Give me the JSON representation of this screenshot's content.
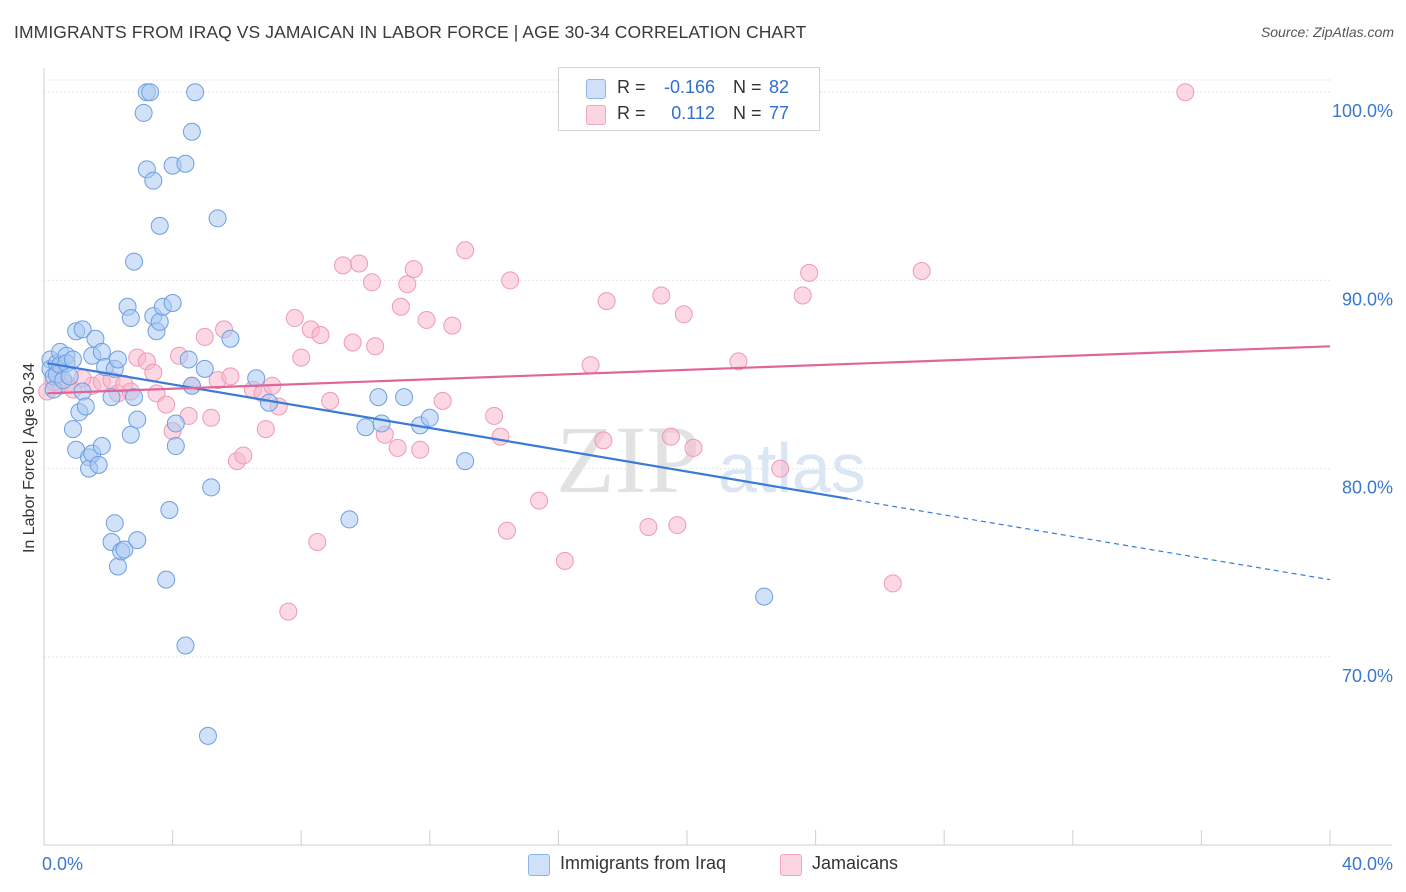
{
  "header": {
    "title": "IMMIGRANTS FROM IRAQ VS JAMAICAN IN LABOR FORCE | AGE 30-34 CORRELATION CHART",
    "source": "Source: ZipAtlas.com"
  },
  "watermark": {
    "zip": "ZIP",
    "atlas": "atlas"
  },
  "legend": {
    "rows": [
      {
        "r_label": "R =",
        "r_value": "-0.166",
        "n_label": "N =",
        "n_value": "82",
        "color": "#a9c8f3"
      },
      {
        "r_label": "R =",
        "r_value": "0.112",
        "n_label": "N =",
        "n_value": "77",
        "color": "#f7b8cc"
      }
    ]
  },
  "bottom_legend": {
    "items": [
      {
        "label": "Immigrants from Iraq",
        "color": "#a9c8f3"
      },
      {
        "label": "Jamaicans",
        "color": "#f7b8cc"
      }
    ]
  },
  "chart_data": {
    "type": "scatter",
    "title": "IMMIGRANTS FROM IRAQ VS JAMAICAN IN LABOR FORCE | AGE 30-34 CORRELATION CHART",
    "xlabel": "",
    "ylabel": "In Labor Force | Age 30-34",
    "xlim": [
      0,
      40
    ],
    "ylim": [
      60,
      101.5
    ],
    "x_tick_labels": [
      "0.0%",
      "40.0%"
    ],
    "y_ticks": [
      70,
      80,
      90,
      100
    ],
    "y_tick_labels": [
      "70.0%",
      "80.0%",
      "90.0%",
      "100.0%"
    ],
    "grid": true,
    "legend_position": "top-center",
    "colors": {
      "iraq": "#3a7bd5",
      "jamaicans": "#e0669a",
      "iraq_fill": "#a9c8f3",
      "jamaicans_fill": "#f7b8cc"
    },
    "series": [
      {
        "name": "Immigrants from Iraq",
        "trend": {
          "x": [
            0.1,
            25.0
          ],
          "y": [
            85.6,
            78.4
          ],
          "dashed_to_x": 40.0,
          "dashed_y": 74.1
        },
        "points": [
          [
            0.2,
            85.8
          ],
          [
            0.2,
            85.3
          ],
          [
            0.3,
            84.9
          ],
          [
            0.3,
            84.2
          ],
          [
            0.4,
            85.6
          ],
          [
            0.4,
            85.0
          ],
          [
            0.5,
            86.2
          ],
          [
            0.5,
            85.5
          ],
          [
            0.6,
            84.7
          ],
          [
            0.7,
            86.0
          ],
          [
            0.7,
            85.6
          ],
          [
            0.8,
            84.9
          ],
          [
            0.9,
            85.8
          ],
          [
            0.9,
            82.1
          ],
          [
            1.0,
            87.3
          ],
          [
            1.0,
            81.0
          ],
          [
            1.1,
            83.0
          ],
          [
            1.2,
            84.1
          ],
          [
            1.2,
            87.4
          ],
          [
            1.3,
            83.3
          ],
          [
            1.4,
            80.6
          ],
          [
            1.4,
            80.0
          ],
          [
            1.5,
            86.0
          ],
          [
            1.5,
            80.8
          ],
          [
            1.6,
            86.9
          ],
          [
            1.7,
            80.2
          ],
          [
            1.8,
            86.2
          ],
          [
            1.8,
            81.2
          ],
          [
            1.9,
            85.4
          ],
          [
            2.1,
            76.1
          ],
          [
            2.1,
            83.8
          ],
          [
            2.2,
            85.3
          ],
          [
            2.2,
            77.1
          ],
          [
            2.3,
            85.8
          ],
          [
            2.3,
            74.8
          ],
          [
            2.4,
            75.6
          ],
          [
            2.5,
            75.7
          ],
          [
            2.6,
            88.6
          ],
          [
            2.7,
            88.0
          ],
          [
            2.7,
            81.8
          ],
          [
            2.8,
            83.8
          ],
          [
            2.8,
            91.0
          ],
          [
            2.9,
            76.2
          ],
          [
            2.9,
            82.6
          ],
          [
            3.1,
            98.9
          ],
          [
            3.2,
            95.9
          ],
          [
            3.2,
            100.0
          ],
          [
            3.3,
            100.0
          ],
          [
            3.4,
            95.3
          ],
          [
            3.4,
            88.1
          ],
          [
            3.5,
            87.3
          ],
          [
            3.6,
            92.9
          ],
          [
            3.6,
            87.8
          ],
          [
            3.7,
            88.6
          ],
          [
            3.8,
            74.1
          ],
          [
            3.9,
            77.8
          ],
          [
            4.0,
            88.8
          ],
          [
            4.0,
            96.1
          ],
          [
            4.1,
            82.4
          ],
          [
            4.1,
            81.2
          ],
          [
            4.4,
            96.2
          ],
          [
            4.4,
            70.6
          ],
          [
            4.5,
            85.8
          ],
          [
            4.6,
            84.4
          ],
          [
            4.6,
            97.9
          ],
          [
            4.7,
            100.0
          ],
          [
            5.0,
            85.3
          ],
          [
            5.1,
            65.8
          ],
          [
            5.2,
            79.0
          ],
          [
            5.4,
            93.3
          ],
          [
            5.8,
            86.9
          ],
          [
            6.6,
            84.8
          ],
          [
            7.0,
            83.5
          ],
          [
            9.5,
            77.3
          ],
          [
            10.0,
            82.2
          ],
          [
            10.4,
            83.8
          ],
          [
            10.5,
            82.4
          ],
          [
            11.2,
            83.8
          ],
          [
            11.7,
            82.3
          ],
          [
            12.0,
            82.7
          ],
          [
            13.1,
            80.4
          ],
          [
            22.4,
            73.2
          ]
        ]
      },
      {
        "name": "Jamaicans",
        "trend": {
          "x": [
            0.1,
            40.0
          ],
          "y": [
            84.0,
            86.5
          ]
        },
        "points": [
          [
            0.1,
            84.1
          ],
          [
            0.5,
            84.4
          ],
          [
            0.7,
            84.5
          ],
          [
            0.9,
            84.2
          ],
          [
            1.5,
            84.4
          ],
          [
            1.8,
            84.6
          ],
          [
            2.1,
            84.7
          ],
          [
            2.3,
            84.0
          ],
          [
            2.5,
            84.5
          ],
          [
            2.7,
            84.1
          ],
          [
            2.9,
            85.9
          ],
          [
            3.2,
            85.7
          ],
          [
            3.4,
            85.1
          ],
          [
            3.5,
            84.0
          ],
          [
            3.8,
            83.4
          ],
          [
            4.0,
            82.0
          ],
          [
            4.2,
            86.0
          ],
          [
            4.5,
            82.8
          ],
          [
            4.6,
            84.4
          ],
          [
            5.0,
            87.0
          ],
          [
            5.2,
            82.7
          ],
          [
            5.4,
            84.7
          ],
          [
            5.6,
            87.4
          ],
          [
            5.8,
            84.9
          ],
          [
            6.0,
            80.4
          ],
          [
            6.2,
            80.7
          ],
          [
            6.5,
            84.2
          ],
          [
            6.8,
            84.0
          ],
          [
            6.9,
            82.1
          ],
          [
            7.1,
            84.4
          ],
          [
            7.3,
            83.3
          ],
          [
            7.6,
            72.4
          ],
          [
            7.8,
            88.0
          ],
          [
            8.0,
            85.9
          ],
          [
            8.3,
            87.4
          ],
          [
            8.5,
            76.1
          ],
          [
            8.6,
            87.1
          ],
          [
            8.9,
            83.6
          ],
          [
            9.3,
            90.8
          ],
          [
            9.6,
            86.7
          ],
          [
            9.8,
            90.9
          ],
          [
            10.2,
            89.9
          ],
          [
            10.3,
            86.5
          ],
          [
            10.6,
            81.8
          ],
          [
            11.0,
            81.1
          ],
          [
            11.1,
            88.6
          ],
          [
            11.3,
            89.8
          ],
          [
            11.5,
            90.6
          ],
          [
            11.7,
            81.0
          ],
          [
            11.9,
            87.9
          ],
          [
            12.4,
            83.6
          ],
          [
            12.7,
            87.6
          ],
          [
            13.1,
            91.6
          ],
          [
            14.0,
            82.8
          ],
          [
            14.2,
            81.7
          ],
          [
            14.4,
            76.7
          ],
          [
            14.5,
            90.0
          ],
          [
            15.4,
            78.3
          ],
          [
            16.2,
            75.1
          ],
          [
            17.0,
            85.5
          ],
          [
            17.4,
            81.5
          ],
          [
            17.5,
            88.9
          ],
          [
            18.8,
            76.9
          ],
          [
            19.2,
            89.2
          ],
          [
            19.5,
            81.7
          ],
          [
            19.7,
            77.0
          ],
          [
            19.9,
            88.2
          ],
          [
            20.2,
            81.1
          ],
          [
            21.6,
            85.7
          ],
          [
            22.9,
            80.0
          ],
          [
            23.6,
            89.2
          ],
          [
            23.8,
            90.4
          ],
          [
            26.4,
            73.9
          ],
          [
            27.3,
            90.5
          ],
          [
            35.5,
            100.0
          ],
          [
            0.3,
            84.6
          ],
          [
            1.2,
            84.8
          ]
        ]
      }
    ]
  }
}
